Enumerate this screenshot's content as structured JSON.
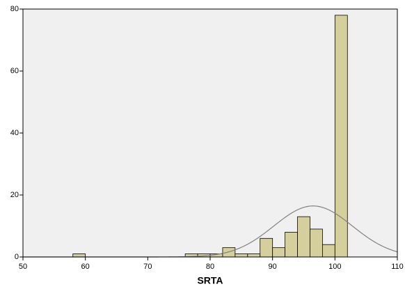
{
  "chart_data": {
    "type": "histogram",
    "x_label": "SRTA",
    "bins": [
      58,
      60,
      62,
      64,
      66,
      68,
      70,
      72,
      74,
      76,
      78,
      80,
      82,
      84,
      86,
      88,
      90,
      92,
      94,
      96,
      98,
      100,
      102
    ],
    "counts": [
      1,
      0,
      0,
      0,
      0,
      0,
      0,
      0,
      0,
      1,
      1,
      1,
      3,
      1,
      1,
      6,
      3,
      8,
      13,
      9,
      4,
      78
    ],
    "color": "#d4cf9c",
    "normal_curve": {
      "mean": 96.5,
      "sd": 6.3,
      "color": "#808080"
    },
    "xlim": [
      50,
      110
    ],
    "xticks": [
      50,
      60,
      70,
      80,
      90,
      100,
      110
    ],
    "ylim": [
      0,
      80
    ],
    "yticks": [
      0,
      20,
      40,
      60,
      80
    ]
  }
}
